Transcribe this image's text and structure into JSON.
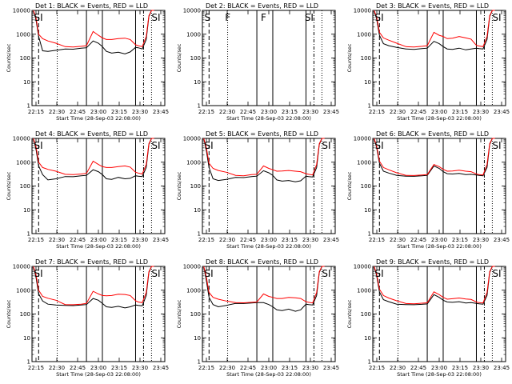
{
  "figure": {
    "xlabel": "Start Time (28-Sep-03 22:08:00)",
    "ylabel": "Counts/sec",
    "x_tick_labels": [
      "22:15",
      "22:30",
      "22:45",
      "23:00",
      "23:15",
      "23:30",
      "23:45"
    ],
    "y_tick_labels": [
      "1",
      "10",
      "100",
      "1000",
      "10000"
    ]
  },
  "colors": {
    "events": "#000000",
    "lld": "#ff0000",
    "background": "#ffffff"
  },
  "chart_data": [
    {
      "type": "line",
      "title": "Det 1: BLACK = Events, RED = LLD",
      "yscale": "log",
      "ylim": [
        1,
        10000
      ],
      "xlim": [
        0,
        100
      ],
      "markers": [
        {
          "label": "SI",
          "x": 1.5
        },
        {
          "label": "SI",
          "x": 90
        }
      ],
      "vlines": [
        {
          "x": 5,
          "style": "dash"
        },
        {
          "x": 19,
          "style": "dot"
        },
        {
          "x": 41,
          "style": "solid"
        },
        {
          "x": 53,
          "style": "solid"
        },
        {
          "x": 78,
          "style": "solid"
        },
        {
          "x": 84,
          "style": "dashdot"
        },
        {
          "x": 90,
          "style": "dot"
        }
      ],
      "x": [
        1,
        3,
        5,
        8,
        12,
        18,
        25,
        31,
        37,
        41,
        46,
        50,
        53,
        56,
        60,
        65,
        70,
        74,
        78,
        80,
        83,
        86,
        88,
        90,
        92
      ],
      "series": [
        {
          "name": "Events",
          "values": [
            10000,
            4000,
            800,
            200,
            190,
            210,
            240,
            235,
            260,
            270,
            520,
            420,
            300,
            190,
            160,
            175,
            150,
            180,
            280,
            270,
            240,
            600,
            5500,
            10000,
            10000
          ]
        },
        {
          "name": "LLD",
          "values": [
            10000,
            5000,
            1000,
            650,
            520,
            420,
            300,
            290,
            310,
            330,
            1300,
            900,
            700,
            600,
            600,
            650,
            680,
            600,
            360,
            330,
            300,
            800,
            6000,
            10000,
            10000
          ]
        }
      ]
    },
    {
      "type": "line",
      "title": "Det 2: BLACK = Events, RED = LLD",
      "yscale": "log",
      "ylim": [
        1,
        10000
      ],
      "xlim": [
        0,
        100
      ],
      "markers": [
        {
          "label": "S",
          "x": 1.5
        },
        {
          "label": "F",
          "x": 17
        },
        {
          "label": "F",
          "x": 44
        },
        {
          "label": "SI",
          "x": 77
        }
      ],
      "vlines": [
        {
          "x": 5,
          "style": "dash"
        },
        {
          "x": 19,
          "style": "dot"
        },
        {
          "x": 41,
          "style": "solid"
        },
        {
          "x": 53,
          "style": "solid"
        },
        {
          "x": 78,
          "style": "solid"
        },
        {
          "x": 84,
          "style": "dashdot"
        },
        {
          "x": 90,
          "style": "dot"
        }
      ],
      "x": [],
      "series": [
        {
          "name": "Events",
          "values": []
        },
        {
          "name": "LLD",
          "values": []
        }
      ]
    },
    {
      "type": "line",
      "title": "Det 3: BLACK = Events, RED = LLD",
      "yscale": "log",
      "ylim": [
        1,
        10000
      ],
      "xlim": [
        0,
        100
      ],
      "markers": [
        {
          "label": "SI",
          "x": 1.5
        },
        {
          "label": "SI",
          "x": 90
        }
      ],
      "vlines": [
        {
          "x": 5,
          "style": "dash"
        },
        {
          "x": 19,
          "style": "dot"
        },
        {
          "x": 41,
          "style": "solid"
        },
        {
          "x": 53,
          "style": "solid"
        },
        {
          "x": 78,
          "style": "solid"
        },
        {
          "x": 84,
          "style": "dashdot"
        },
        {
          "x": 90,
          "style": "dot"
        }
      ],
      "x": [
        1,
        3,
        5,
        8,
        12,
        18,
        25,
        31,
        37,
        41,
        46,
        50,
        53,
        56,
        60,
        65,
        70,
        74,
        78,
        80,
        83,
        86,
        88,
        90,
        92
      ],
      "series": [
        {
          "name": "Events",
          "values": [
            10000,
            4000,
            900,
            400,
            330,
            280,
            240,
            230,
            250,
            260,
            500,
            400,
            300,
            240,
            230,
            260,
            220,
            240,
            260,
            250,
            240,
            600,
            5500,
            10000,
            10000
          ]
        },
        {
          "name": "LLD",
          "values": [
            10000,
            5000,
            1200,
            700,
            560,
            420,
            300,
            290,
            310,
            330,
            1200,
            900,
            800,
            650,
            680,
            800,
            700,
            620,
            340,
            320,
            300,
            800,
            6000,
            10000,
            10000
          ]
        }
      ]
    },
    {
      "type": "line",
      "title": "Det 4: BLACK = Events, RED = LLD",
      "yscale": "log",
      "ylim": [
        1,
        10000
      ],
      "xlim": [
        0,
        100
      ],
      "markers": [
        {
          "label": "SI",
          "x": 1.5
        },
        {
          "label": "SI",
          "x": 90
        }
      ],
      "vlines": [
        {
          "x": 5,
          "style": "dash"
        },
        {
          "x": 19,
          "style": "dot"
        },
        {
          "x": 41,
          "style": "solid"
        },
        {
          "x": 53,
          "style": "solid"
        },
        {
          "x": 78,
          "style": "solid"
        },
        {
          "x": 84,
          "style": "dashdot"
        },
        {
          "x": 90,
          "style": "dot"
        }
      ],
      "x": [
        1,
        3,
        5,
        8,
        12,
        18,
        25,
        31,
        37,
        41,
        46,
        50,
        53,
        56,
        60,
        65,
        70,
        74,
        78,
        80,
        83,
        86,
        88,
        90,
        92
      ],
      "series": [
        {
          "name": "Events",
          "values": [
            10000,
            3500,
            700,
            300,
            180,
            200,
            250,
            245,
            270,
            280,
            480,
            400,
            300,
            200,
            190,
            230,
            200,
            210,
            270,
            260,
            250,
            600,
            5500,
            10000,
            10000
          ]
        },
        {
          "name": "LLD",
          "values": [
            10000,
            4500,
            1000,
            600,
            500,
            420,
            310,
            300,
            320,
            340,
            1100,
            800,
            650,
            600,
            600,
            650,
            700,
            620,
            380,
            350,
            320,
            800,
            6000,
            10000,
            10000
          ]
        }
      ]
    },
    {
      "type": "line",
      "title": "Det 5: BLACK = Events, RED = LLD",
      "yscale": "log",
      "ylim": [
        1,
        10000
      ],
      "xlim": [
        0,
        100
      ],
      "markers": [
        {
          "label": "SI",
          "x": 1.5
        },
        {
          "label": "SI",
          "x": 90
        }
      ],
      "vlines": [
        {
          "x": 5,
          "style": "dash"
        },
        {
          "x": 19,
          "style": "dot"
        },
        {
          "x": 41,
          "style": "solid"
        },
        {
          "x": 53,
          "style": "solid"
        },
        {
          "x": 78,
          "style": "solid"
        },
        {
          "x": 84,
          "style": "dashdot"
        },
        {
          "x": 90,
          "style": "dot"
        }
      ],
      "x": [
        1,
        3,
        5,
        8,
        12,
        18,
        25,
        31,
        37,
        41,
        46,
        50,
        53,
        56,
        60,
        65,
        70,
        74,
        78,
        80,
        83,
        86,
        88,
        90,
        92
      ],
      "series": [
        {
          "name": "Events",
          "values": [
            10000,
            3000,
            600,
            200,
            170,
            190,
            230,
            225,
            250,
            260,
            440,
            360,
            280,
            180,
            160,
            170,
            150,
            165,
            260,
            250,
            240,
            600,
            5500,
            10000,
            10000
          ]
        },
        {
          "name": "LLD",
          "values": [
            10000,
            4000,
            900,
            550,
            450,
            380,
            280,
            270,
            300,
            310,
            700,
            550,
            480,
            420,
            430,
            450,
            420,
            400,
            330,
            310,
            290,
            800,
            6000,
            10000,
            10000
          ]
        }
      ]
    },
    {
      "type": "line",
      "title": "Det 6: BLACK = Events, RED = LLD",
      "yscale": "log",
      "ylim": [
        1,
        10000
      ],
      "xlim": [
        0,
        100
      ],
      "markers": [
        {
          "label": "SI",
          "x": 1.5
        },
        {
          "label": "SI",
          "x": 90
        }
      ],
      "vlines": [
        {
          "x": 5,
          "style": "dash"
        },
        {
          "x": 19,
          "style": "dot"
        },
        {
          "x": 41,
          "style": "solid"
        },
        {
          "x": 53,
          "style": "solid"
        },
        {
          "x": 78,
          "style": "solid"
        },
        {
          "x": 84,
          "style": "dashdot"
        },
        {
          "x": 90,
          "style": "dot"
        }
      ],
      "x": [
        1,
        3,
        5,
        8,
        12,
        18,
        25,
        31,
        37,
        41,
        46,
        50,
        53,
        56,
        60,
        65,
        70,
        74,
        78,
        80,
        83,
        86,
        88,
        90,
        92
      ],
      "series": [
        {
          "name": "Events",
          "values": [
            10000,
            3800,
            900,
            420,
            350,
            280,
            260,
            255,
            270,
            280,
            700,
            550,
            400,
            330,
            320,
            340,
            300,
            310,
            290,
            280,
            270,
            600,
            5500,
            10000,
            10000
          ]
        },
        {
          "name": "LLD",
          "values": [
            10000,
            4500,
            1100,
            600,
            480,
            360,
            280,
            275,
            290,
            300,
            800,
            650,
            500,
            420,
            430,
            460,
            420,
            400,
            320,
            300,
            290,
            800,
            6000,
            10000,
            10000
          ]
        }
      ]
    },
    {
      "type": "line",
      "title": "Det 7: BLACK = Events, RED = LLD",
      "yscale": "log",
      "ylim": [
        1,
        10000
      ],
      "xlim": [
        0,
        100
      ],
      "markers": [
        {
          "label": "SI",
          "x": 1.5
        },
        {
          "label": "SI",
          "x": 90
        }
      ],
      "vlines": [
        {
          "x": 5,
          "style": "dash"
        },
        {
          "x": 19,
          "style": "dot"
        },
        {
          "x": 41,
          "style": "solid"
        },
        {
          "x": 53,
          "style": "solid"
        },
        {
          "x": 78,
          "style": "solid"
        },
        {
          "x": 84,
          "style": "dashdot"
        },
        {
          "x": 90,
          "style": "dot"
        }
      ],
      "x": [
        1,
        3,
        5,
        8,
        12,
        18,
        25,
        31,
        37,
        41,
        46,
        50,
        53,
        56,
        60,
        65,
        70,
        74,
        78,
        80,
        83,
        86,
        88,
        90,
        92
      ],
      "series": [
        {
          "name": "Events",
          "values": [
            10000,
            3500,
            700,
            350,
            260,
            240,
            230,
            225,
            240,
            250,
            450,
            380,
            280,
            200,
            190,
            210,
            180,
            200,
            240,
            230,
            220,
            600,
            5500,
            10000,
            10000
          ]
        },
        {
          "name": "LLD",
          "values": [
            10000,
            4500,
            1000,
            550,
            460,
            380,
            250,
            245,
            260,
            280,
            900,
            700,
            600,
            580,
            600,
            680,
            660,
            600,
            360,
            320,
            300,
            800,
            6000,
            10000,
            10000
          ]
        }
      ]
    },
    {
      "type": "line",
      "title": "Det 8: BLACK = Events, RED = LLD",
      "yscale": "log",
      "ylim": [
        1,
        10000
      ],
      "xlim": [
        0,
        100
      ],
      "markers": [
        {
          "label": "SI",
          "x": 1.5
        },
        {
          "label": "SI",
          "x": 90
        }
      ],
      "vlines": [
        {
          "x": 5,
          "style": "dash"
        },
        {
          "x": 19,
          "style": "dot"
        },
        {
          "x": 41,
          "style": "solid"
        },
        {
          "x": 53,
          "style": "solid"
        },
        {
          "x": 78,
          "style": "solid"
        },
        {
          "x": 84,
          "style": "dashdot"
        },
        {
          "x": 90,
          "style": "dot"
        }
      ],
      "x": [
        1,
        3,
        5,
        8,
        12,
        18,
        25,
        31,
        37,
        41,
        46,
        50,
        53,
        56,
        60,
        65,
        70,
        74,
        78,
        80,
        83,
        86,
        88,
        90,
        92
      ],
      "series": [
        {
          "name": "Events",
          "values": [
            10000,
            2500,
            500,
            250,
            200,
            230,
            280,
            275,
            290,
            300,
            300,
            250,
            200,
            150,
            140,
            160,
            130,
            150,
            260,
            250,
            240,
            600,
            5500,
            10000,
            10000
          ]
        },
        {
          "name": "LLD",
          "values": [
            10000,
            3500,
            800,
            500,
            420,
            350,
            300,
            295,
            310,
            320,
            700,
            550,
            500,
            450,
            450,
            500,
            480,
            450,
            330,
            310,
            290,
            800,
            6000,
            10000,
            10000
          ]
        }
      ]
    },
    {
      "type": "line",
      "title": "Det 9: BLACK = Events, RED = LLD",
      "yscale": "log",
      "ylim": [
        1,
        10000
      ],
      "xlim": [
        0,
        100
      ],
      "markers": [
        {
          "label": "SI",
          "x": 1.5
        },
        {
          "label": "SI",
          "x": 90
        }
      ],
      "vlines": [
        {
          "x": 5,
          "style": "dash"
        },
        {
          "x": 19,
          "style": "dot"
        },
        {
          "x": 41,
          "style": "solid"
        },
        {
          "x": 53,
          "style": "solid"
        },
        {
          "x": 78,
          "style": "solid"
        },
        {
          "x": 84,
          "style": "dashdot"
        },
        {
          "x": 90,
          "style": "dot"
        }
      ],
      "x": [
        1,
        3,
        5,
        8,
        12,
        18,
        25,
        31,
        37,
        41,
        46,
        50,
        53,
        56,
        60,
        65,
        70,
        74,
        78,
        80,
        83,
        86,
        88,
        90,
        92
      ],
      "series": [
        {
          "name": "Events",
          "values": [
            10000,
            3800,
            850,
            400,
            330,
            260,
            250,
            245,
            255,
            265,
            650,
            500,
            380,
            320,
            310,
            330,
            290,
            300,
            280,
            270,
            260,
            600,
            5500,
            10000,
            10000
          ]
        },
        {
          "name": "LLD",
          "values": [
            10000,
            4500,
            1100,
            600,
            470,
            360,
            275,
            270,
            285,
            295,
            850,
            650,
            500,
            420,
            440,
            470,
            430,
            410,
            320,
            300,
            290,
            800,
            6000,
            10000,
            10000
          ]
        }
      ]
    }
  ]
}
